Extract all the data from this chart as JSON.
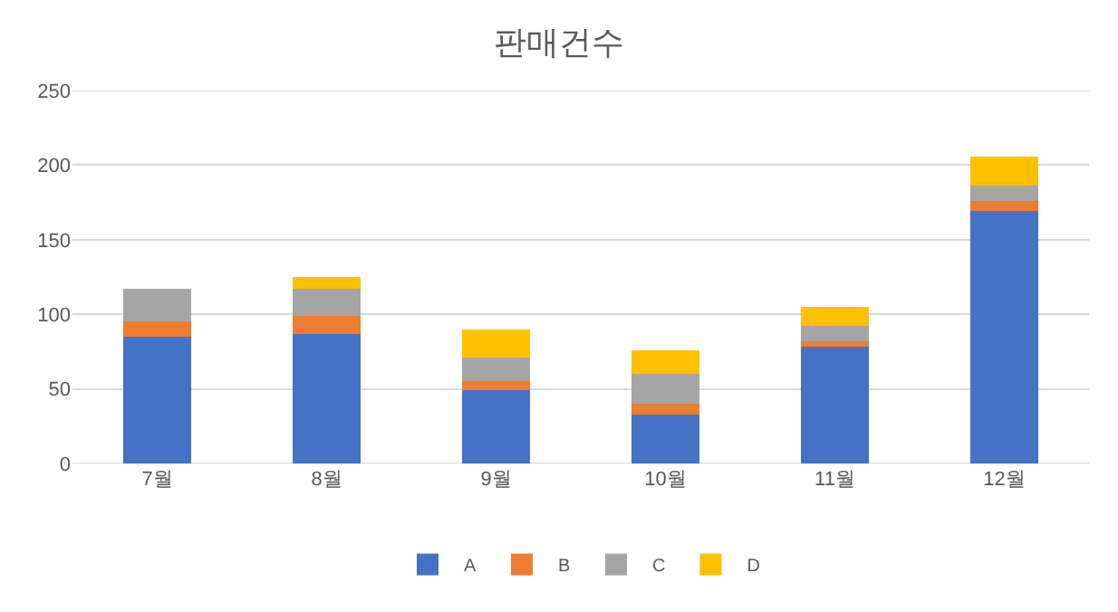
{
  "chart_data": {
    "type": "bar",
    "title": "판매건수",
    "stacked": true,
    "categories": [
      "7월",
      "8월",
      "9월",
      "10월",
      "11월",
      "12월"
    ],
    "series": [
      {
        "name": "A",
        "color": "#4472c4",
        "values": [
          85,
          87,
          49,
          33,
          78,
          169
        ]
      },
      {
        "name": "B",
        "color": "#ed7d31",
        "values": [
          10,
          12,
          6,
          7,
          4,
          7
        ]
      },
      {
        "name": "C",
        "color": "#a5a5a5",
        "values": [
          22,
          18,
          16,
          20,
          10,
          10
        ]
      },
      {
        "name": "D",
        "color": "#ffc000",
        "values": [
          null,
          8,
          19,
          16,
          13,
          20
        ]
      }
    ],
    "ylim": [
      0,
      250
    ],
    "yticks": [
      0,
      50,
      100,
      150,
      200,
      250
    ],
    "grid": "y",
    "legend": "bottom"
  }
}
